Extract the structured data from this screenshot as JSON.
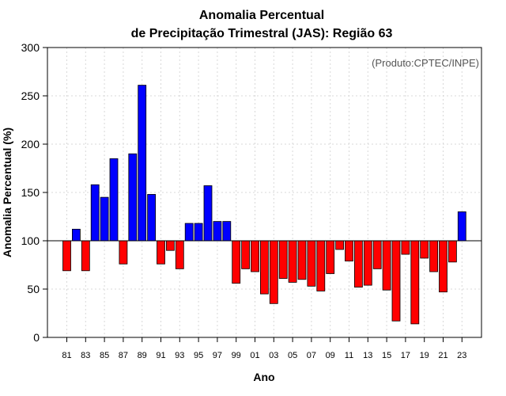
{
  "chart_data": {
    "type": "bar",
    "title_line1": "Anomalia Percentual",
    "title_line2": "de Precipitação Trimestral (JAS): Região 63",
    "xlabel": "Ano",
    "ylabel": "Anomalia Percentual (%)",
    "annotation": "(Produto:CPTEC/INPE)",
    "ylim": [
      0,
      300
    ],
    "yticks": [
      0,
      50,
      100,
      150,
      200,
      250,
      300
    ],
    "baseline": 100,
    "grid": true,
    "categories": [
      "81",
      "82",
      "83",
      "84",
      "85",
      "86",
      "87",
      "88",
      "89",
      "90",
      "91",
      "92",
      "93",
      "94",
      "95",
      "96",
      "97",
      "98",
      "99",
      "00",
      "01",
      "02",
      "03",
      "04",
      "05",
      "06",
      "07",
      "08",
      "09",
      "10",
      "11",
      "12",
      "13",
      "14",
      "15",
      "16",
      "17",
      "18",
      "19",
      "20",
      "21",
      "22",
      "23"
    ],
    "xtick_labels": [
      "81",
      "83",
      "85",
      "87",
      "89",
      "91",
      "93",
      "95",
      "97",
      "99",
      "01",
      "03",
      "05",
      "07",
      "09",
      "11",
      "13",
      "15",
      "17",
      "19",
      "21",
      "23"
    ],
    "values": [
      69,
      112,
      69,
      158,
      145,
      185,
      76,
      190,
      261,
      148,
      76,
      90,
      71,
      118,
      118,
      157,
      120,
      120,
      56,
      71,
      68,
      45,
      35,
      61,
      57,
      60,
      53,
      48,
      66,
      91,
      79,
      52,
      54,
      71,
      49,
      17,
      86,
      14,
      82,
      68,
      47,
      78,
      130
    ],
    "colors": {
      "above": "#0000ff",
      "below": "#ff0000",
      "outline": "#000000",
      "grid": "#d8d8d8"
    }
  }
}
